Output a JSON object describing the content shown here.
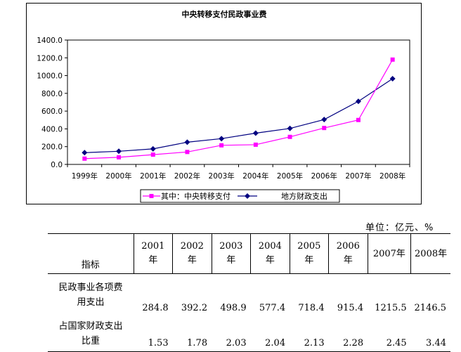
{
  "chart_data": {
    "type": "line",
    "title": "中央转移支付民政事业费",
    "categories": [
      "1999年",
      "2000年",
      "2001年",
      "2002年",
      "2003年",
      "2004年",
      "2005年",
      "2006年",
      "2007年",
      "2008年"
    ],
    "ylim": [
      0,
      1400
    ],
    "yticks": [
      "0.0",
      "200.0",
      "400.0",
      "600.0",
      "800.0",
      "1000.0",
      "1200.0",
      "1400.0"
    ],
    "grid": false,
    "legend_position": "bottom",
    "series": [
      {
        "name": "其中：中央转移支付",
        "color": "#ff00ff",
        "marker": "square",
        "values": [
          65,
          80,
          110,
          140,
          215,
          222,
          310,
          410,
          500,
          1180
        ]
      },
      {
        "name": "地方财政支出",
        "color": "#000080",
        "marker": "diamond",
        "values": [
          132,
          148,
          175,
          250,
          290,
          352,
          405,
          505,
          710,
          965
        ]
      }
    ]
  },
  "table": {
    "unit": "单位：亿元、%",
    "header_label": "指标",
    "years": [
      {
        "year": "2001",
        "suffix": "年"
      },
      {
        "year": "2002",
        "suffix": "年"
      },
      {
        "year": "2003",
        "suffix": "年"
      },
      {
        "year": "2004",
        "suffix": "年"
      },
      {
        "year": "2005",
        "suffix": "年"
      },
      {
        "year": "2006",
        "suffix": "年"
      },
      {
        "year": "2007年",
        "suffix": ""
      },
      {
        "year": "2008年",
        "suffix": ""
      }
    ],
    "rows": [
      {
        "label_line1": "民政事业各项费",
        "label_line2": "用支出",
        "values": [
          "284.8",
          "392.2",
          "498.9",
          "577.4",
          "718.4",
          "915.4",
          "1215.5",
          "2146.5"
        ]
      },
      {
        "label_line1": "占国家财政支出",
        "label_line2": "比重",
        "values": [
          "1.53",
          "1.78",
          "2.03",
          "2.04",
          "2.13",
          "2.28",
          "2.45",
          "3.44"
        ]
      }
    ]
  }
}
